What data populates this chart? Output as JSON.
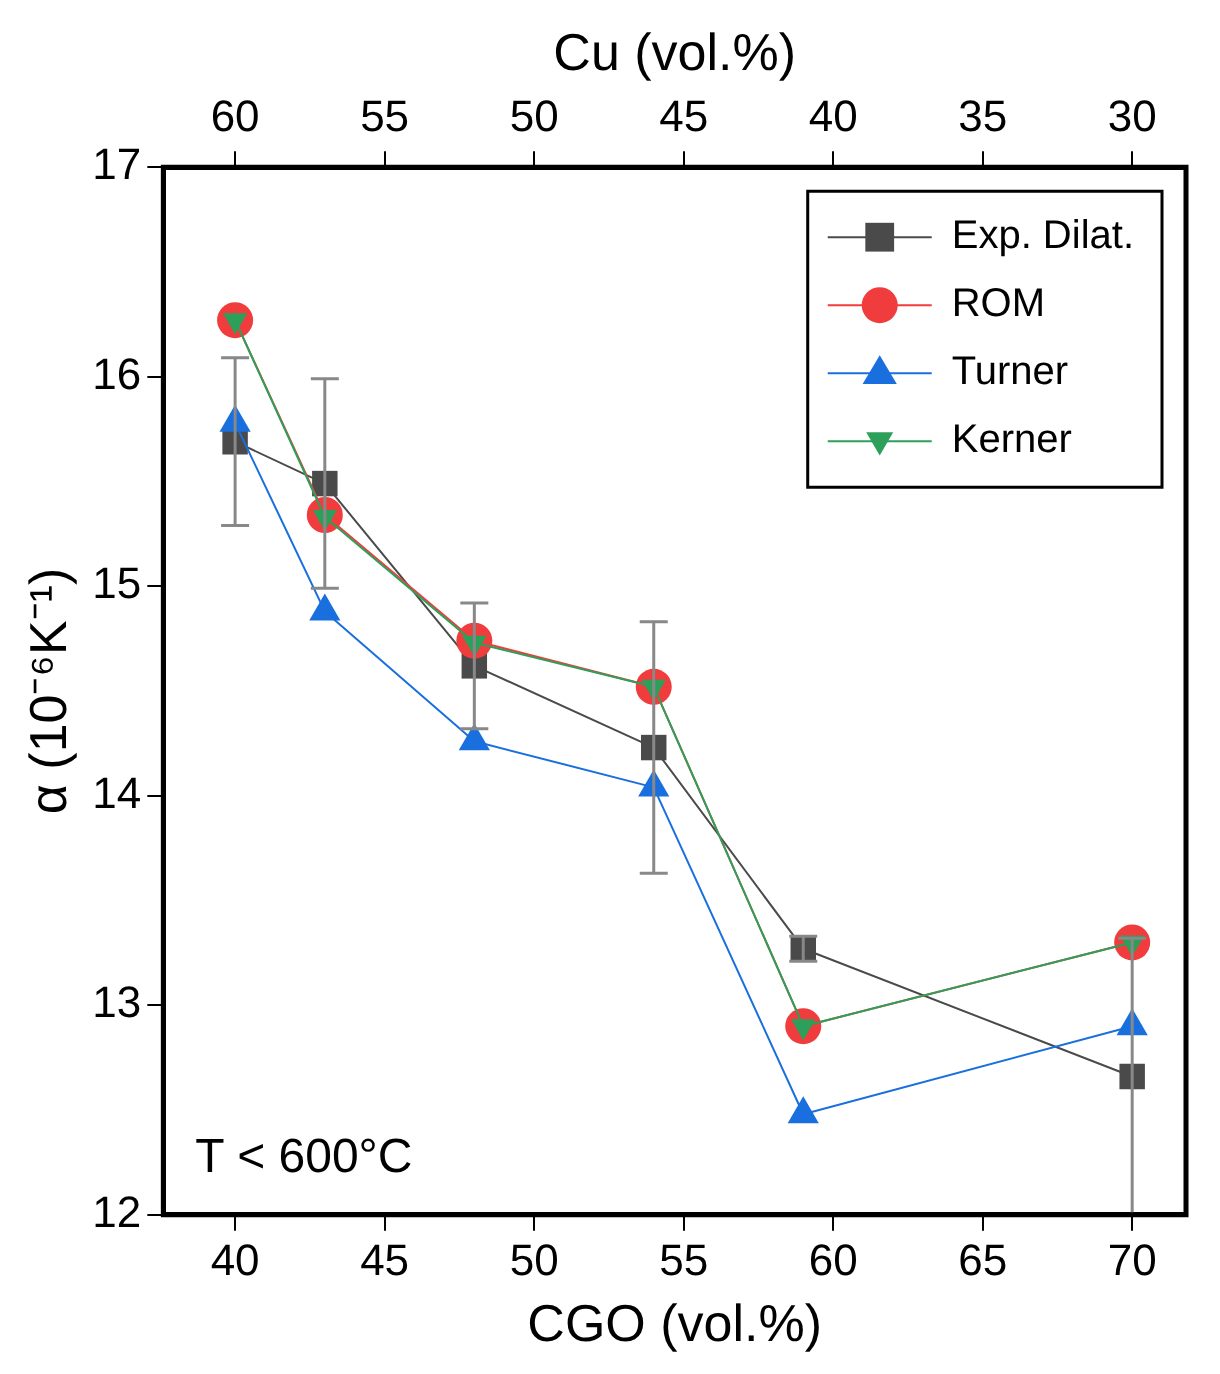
{
  "chart_data": {
    "type": "line",
    "xlabel": "CGO (vol.%)",
    "x2label": "Cu (vol.%)",
    "ylabel": "α (10⁻⁶K⁻¹)",
    "x": [
      40,
      43,
      48,
      54,
      59,
      70
    ],
    "xlim": [
      37.6,
      71.8
    ],
    "xticks": [
      40,
      45,
      50,
      55,
      60,
      65,
      70
    ],
    "x2lim": [
      62.4,
      28.2
    ],
    "x2ticks": [
      60,
      55,
      50,
      45,
      40,
      35,
      30
    ],
    "ylim": [
      12,
      17
    ],
    "yticks": [
      12,
      13,
      14,
      15,
      16,
      17
    ],
    "grid": false,
    "legend": "top right",
    "series": [
      {
        "name": "Exp. Dilat.",
        "color": "#4a4a4a",
        "marker": "square",
        "values": [
          15.69,
          15.49,
          14.62,
          14.23,
          13.27,
          12.66
        ],
        "errors": [
          0.4,
          0.5,
          0.3,
          0.6,
          0.06,
          0.66
        ]
      },
      {
        "name": "ROM",
        "color": "#f03c3c",
        "marker": "circle",
        "values": [
          16.27,
          15.34,
          14.74,
          14.52,
          12.9,
          13.3
        ]
      },
      {
        "name": "Turner",
        "color": "#1a6fdf",
        "marker": "triangle",
        "values": [
          15.78,
          14.88,
          14.26,
          14.04,
          12.48,
          12.9
        ]
      },
      {
        "name": "Kerner",
        "color": "#2ca05a",
        "marker": "triangle-down",
        "values": [
          16.27,
          15.33,
          14.73,
          14.52,
          12.9,
          13.3
        ]
      }
    ],
    "annotations": [
      "T < 600°C"
    ]
  }
}
